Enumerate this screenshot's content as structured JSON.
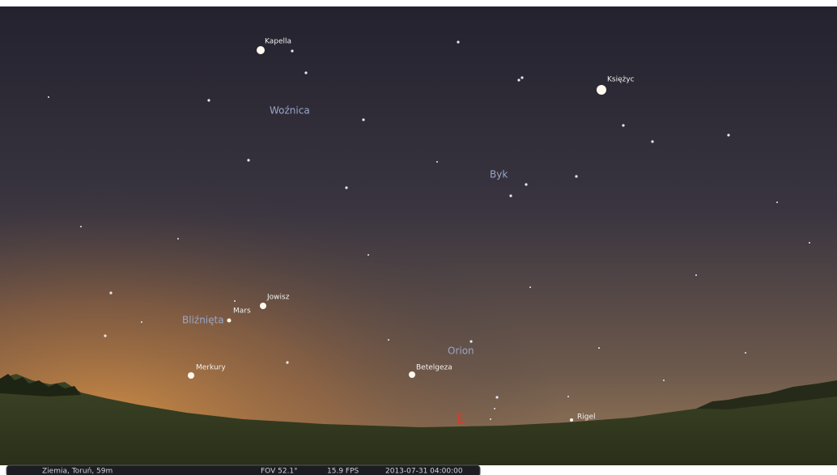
{
  "objects": [
    {
      "label": "Kapella"
    },
    {
      "label": "Księżyc"
    },
    {
      "label": "Jowisz"
    },
    {
      "label": "Mars"
    },
    {
      "label": "Merkury"
    },
    {
      "label": "Betelgeza"
    },
    {
      "label": "Rigel"
    }
  ],
  "constellations": [
    {
      "label": "Woźnica"
    },
    {
      "label": "Byk"
    },
    {
      "label": "Bliźnięta"
    },
    {
      "label": "Orion"
    }
  ],
  "cardinal": "E",
  "status_bar": {
    "location": "Ziemia, Toruń, 59m",
    "fov": "FOV 52.1°",
    "fps": "15.9 FPS",
    "datetime": "2013-07-31  04:00:00"
  }
}
